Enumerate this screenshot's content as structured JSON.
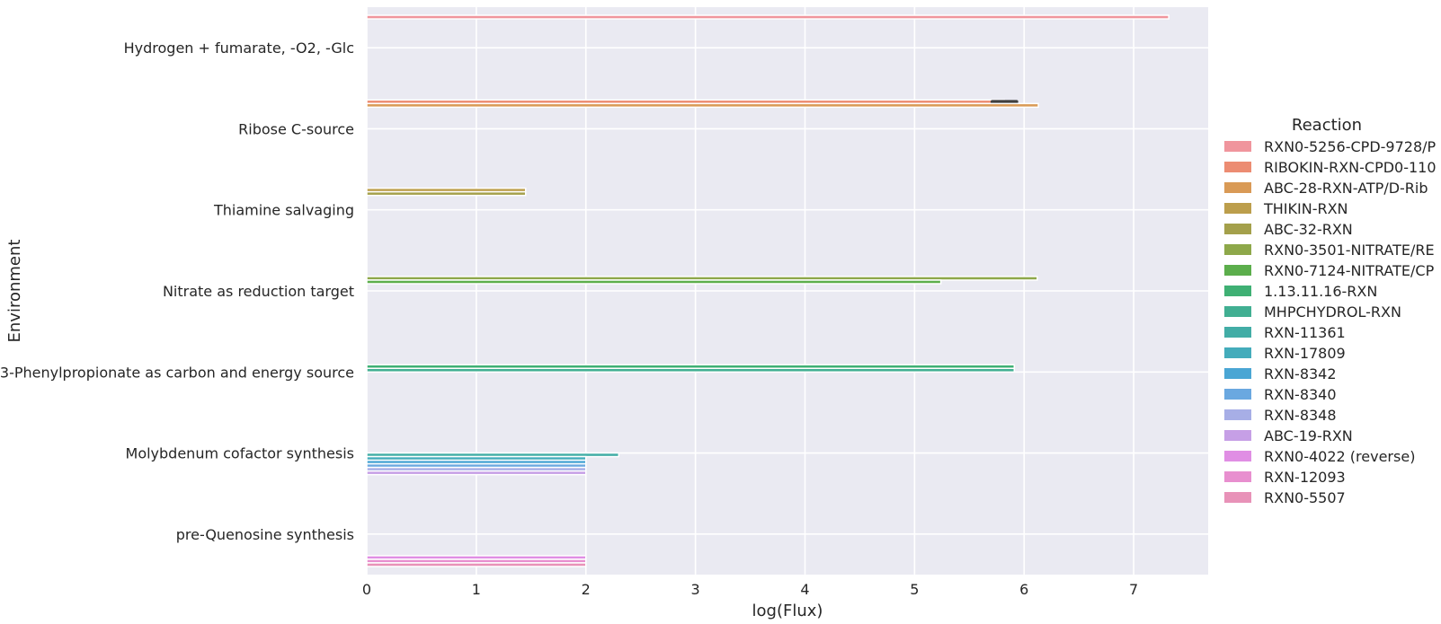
{
  "chart_data": {
    "type": "bar",
    "orientation": "horizontal",
    "xlabel": "log(Flux)",
    "ylabel": "Environment",
    "xlim": [
      0,
      7.68
    ],
    "xticks": [
      0,
      1,
      2,
      3,
      4,
      5,
      6,
      7
    ],
    "grid": true,
    "legend_title": "Reaction",
    "legend_position": "right",
    "categories": [
      "Hydrogen + fumarate, -O2, -Glc",
      "Ribose C-source",
      "Thiamine salvaging",
      "Nitrate as reduction target",
      "3-Phenylpropionate as carbon and energy source",
      "Molybdenum cofactor synthesis",
      "pre-Quenosine synthesis"
    ],
    "series": [
      {
        "name": "RXN0-5256-CPD-9728/P",
        "color": "#f0959d",
        "values": [
          7.32,
          null,
          null,
          null,
          null,
          null,
          null
        ]
      },
      {
        "name": "RIBOKIN-RXN-CPD0-110",
        "color": "#ec8c72",
        "values": [
          null,
          5.82,
          null,
          null,
          null,
          null,
          null
        ],
        "error": [
          5.71,
          5.93
        ]
      },
      {
        "name": "ABC-28-RXN-ATP/D-Rib",
        "color": "#d99a56",
        "values": [
          null,
          6.13,
          null,
          null,
          null,
          null,
          null
        ]
      },
      {
        "name": "THIKIN-RXN",
        "color": "#bc9e4c",
        "values": [
          null,
          null,
          1.45,
          null,
          null,
          null,
          null
        ]
      },
      {
        "name": "ABC-32-RXN",
        "color": "#a4a04b",
        "values": [
          null,
          null,
          1.45,
          null,
          null,
          null,
          null
        ]
      },
      {
        "name": "RXN0-3501-NITRATE/RE",
        "color": "#8ea84a",
        "values": [
          null,
          null,
          null,
          6.12,
          null,
          null,
          null
        ]
      },
      {
        "name": "RXN0-7124-NITRATE/CP",
        "color": "#5cae4c",
        "values": [
          null,
          null,
          null,
          5.24,
          null,
          null,
          null
        ]
      },
      {
        "name": "1.13.11.16-RXN",
        "color": "#3fb074",
        "values": [
          null,
          null,
          null,
          null,
          5.91,
          null,
          null
        ]
      },
      {
        "name": "MHPCHYDROL-RXN",
        "color": "#41af92",
        "values": [
          null,
          null,
          null,
          null,
          5.91,
          null,
          null
        ]
      },
      {
        "name": "RXN-11361",
        "color": "#42ada6",
        "values": [
          null,
          null,
          null,
          null,
          null,
          2.3,
          null
        ]
      },
      {
        "name": "RXN-17809",
        "color": "#44acbb",
        "values": [
          null,
          null,
          null,
          null,
          null,
          2.0,
          null
        ]
      },
      {
        "name": "RXN-8342",
        "color": "#4aa6d4",
        "values": [
          null,
          null,
          null,
          null,
          null,
          2.0,
          null
        ]
      },
      {
        "name": "RXN-8340",
        "color": "#6aa8e0",
        "values": [
          null,
          null,
          null,
          null,
          null,
          2.0,
          null
        ]
      },
      {
        "name": "RXN-8348",
        "color": "#a7aee6",
        "values": [
          null,
          null,
          null,
          null,
          null,
          2.0,
          null
        ]
      },
      {
        "name": "ABC-19-RXN",
        "color": "#c69fe6",
        "values": [
          null,
          null,
          null,
          null,
          null,
          2.0,
          null
        ]
      },
      {
        "name": "RXN0-4022 (reverse)",
        "color": "#e08ee4",
        "values": [
          null,
          null,
          null,
          null,
          null,
          null,
          2.0
        ]
      },
      {
        "name": "RXN-12093",
        "color": "#e88fcf",
        "values": [
          null,
          null,
          null,
          null,
          null,
          null,
          2.0
        ]
      },
      {
        "name": "RXN0-5507",
        "color": "#e892b8",
        "values": [
          null,
          null,
          null,
          null,
          null,
          null,
          2.0
        ]
      }
    ]
  }
}
